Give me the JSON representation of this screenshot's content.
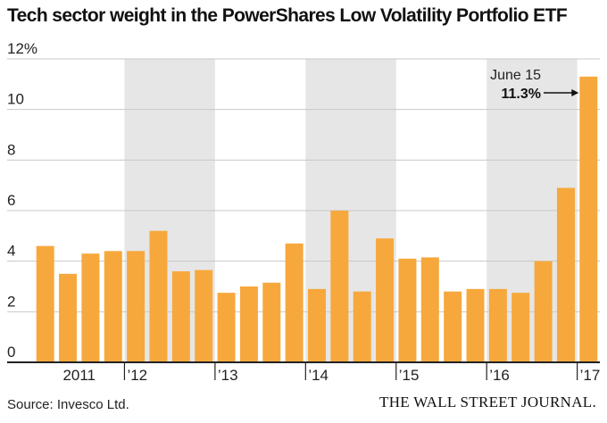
{
  "title": "Tech sector weight in the PowerShares Low Volatility Portfolio ETF",
  "source": "Source: Invesco Ltd.",
  "brand": "THE WALL STREET JOURNAL.",
  "colors": {
    "bar": "#f7a83c",
    "shade": "#e6e6e6",
    "grid": "#c8c8c8",
    "axis": "#222222",
    "text": "#222222"
  },
  "chart_data": {
    "type": "bar",
    "ylim": [
      0,
      12
    ],
    "y_ticks": [
      {
        "value": 0,
        "label": "0"
      },
      {
        "value": 2,
        "label": "2"
      },
      {
        "value": 4,
        "label": "4"
      },
      {
        "value": 6,
        "label": "6"
      },
      {
        "value": 8,
        "label": "8"
      },
      {
        "value": 10,
        "label": "10"
      },
      {
        "value": 12,
        "label": "12%"
      }
    ],
    "x_ticks": [
      {
        "start_index": 0,
        "label": "2011"
      },
      {
        "start_index": 4,
        "label": "’12"
      },
      {
        "start_index": 8,
        "label": "’13"
      },
      {
        "start_index": 12,
        "label": "’14"
      },
      {
        "start_index": 16,
        "label": "’15"
      },
      {
        "start_index": 20,
        "label": "’16"
      },
      {
        "start_index": 24,
        "label": "’17"
      }
    ],
    "shaded_years": [
      "’12",
      "’14",
      "’16"
    ],
    "values": [
      4.6,
      3.5,
      4.3,
      4.4,
      4.4,
      5.2,
      3.6,
      3.65,
      2.75,
      3.0,
      3.15,
      4.7,
      2.9,
      6.0,
      2.8,
      4.9,
      4.1,
      4.15,
      2.8,
      2.9,
      2.9,
      2.75,
      4.0,
      6.9,
      11.3
    ],
    "annotation": {
      "label": "June 15",
      "value_label": "11.3%",
      "bar_index": 24
    },
    "grid": true,
    "legend": "none"
  }
}
